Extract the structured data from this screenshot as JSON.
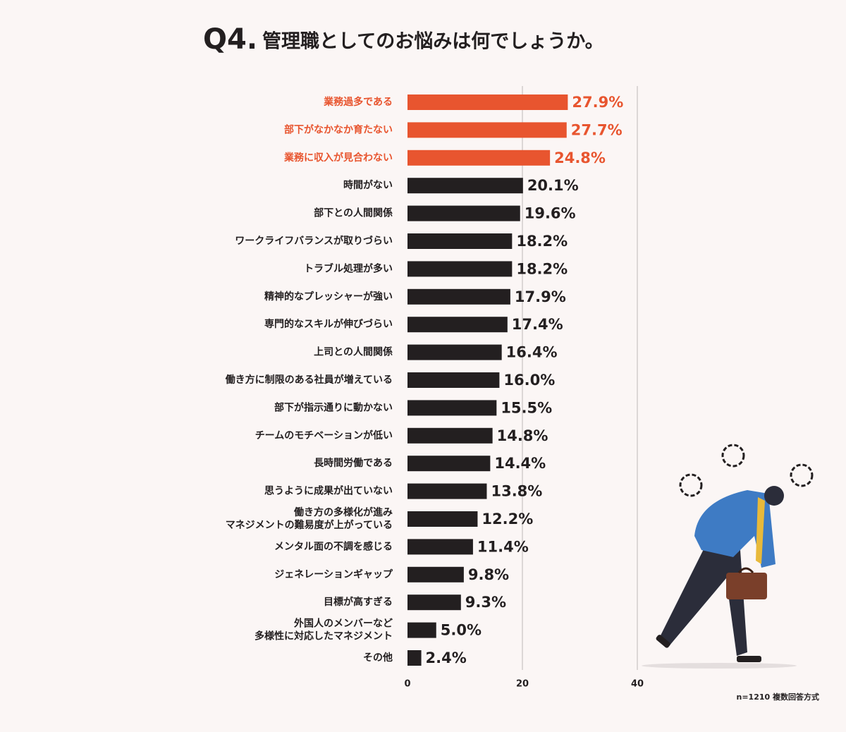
{
  "chart_data": {
    "type": "bar",
    "orientation": "horizontal",
    "question_number": "Q4.",
    "title": "管理職としてのお悩みは何でしょうか。",
    "categories": [
      "業務過多である",
      "部下がなかなか育たない",
      "業務に収入が見合わない",
      "時間がない",
      "部下との人間関係",
      "ワークライフバランスが取りづらい",
      "トラブル処理が多い",
      "精神的なプレッシャーが強い",
      "専門的なスキルが伸びづらい",
      "上司との人間関係",
      "働き方に制限のある社員が増えている",
      "部下が指示通りに動かない",
      "チームのモチベーションが低い",
      "長時間労働である",
      "思うように成果が出ていない",
      "働き方の多様化が進み\nマネジメントの難易度が上がっている",
      "メンタル面の不調を感じる",
      "ジェネレーションギャップ",
      "目標が高すぎる",
      "外国人のメンバーなど\n多様性に対応したマネジメント",
      "その他"
    ],
    "values": [
      27.9,
      27.7,
      24.8,
      20.1,
      19.6,
      18.2,
      18.2,
      17.9,
      17.4,
      16.4,
      16.0,
      15.5,
      14.8,
      14.4,
      13.8,
      12.2,
      11.4,
      9.8,
      9.3,
      5.0,
      2.4
    ],
    "value_labels": [
      "27.9%",
      "27.7%",
      "24.8%",
      "20.1%",
      "19.6%",
      "18.2%",
      "18.2%",
      "17.9%",
      "17.4%",
      "16.4%",
      "16.0%",
      "15.5%",
      "14.8%",
      "14.4%",
      "13.8%",
      "12.2%",
      "11.4%",
      "9.8%",
      "9.3%",
      "5.0%",
      "2.4%"
    ],
    "colors": [
      "#e8552f",
      "#e8552f",
      "#e8552f",
      "#231f20",
      "#231f20",
      "#231f20",
      "#231f20",
      "#231f20",
      "#231f20",
      "#231f20",
      "#231f20",
      "#231f20",
      "#231f20",
      "#231f20",
      "#231f20",
      "#231f20",
      "#231f20",
      "#231f20",
      "#231f20",
      "#231f20",
      "#231f20"
    ],
    "xlim": [
      0,
      40
    ],
    "xticks": [
      0,
      20,
      40
    ],
    "grid": true,
    "note": "n=1210 複数回答方式"
  }
}
